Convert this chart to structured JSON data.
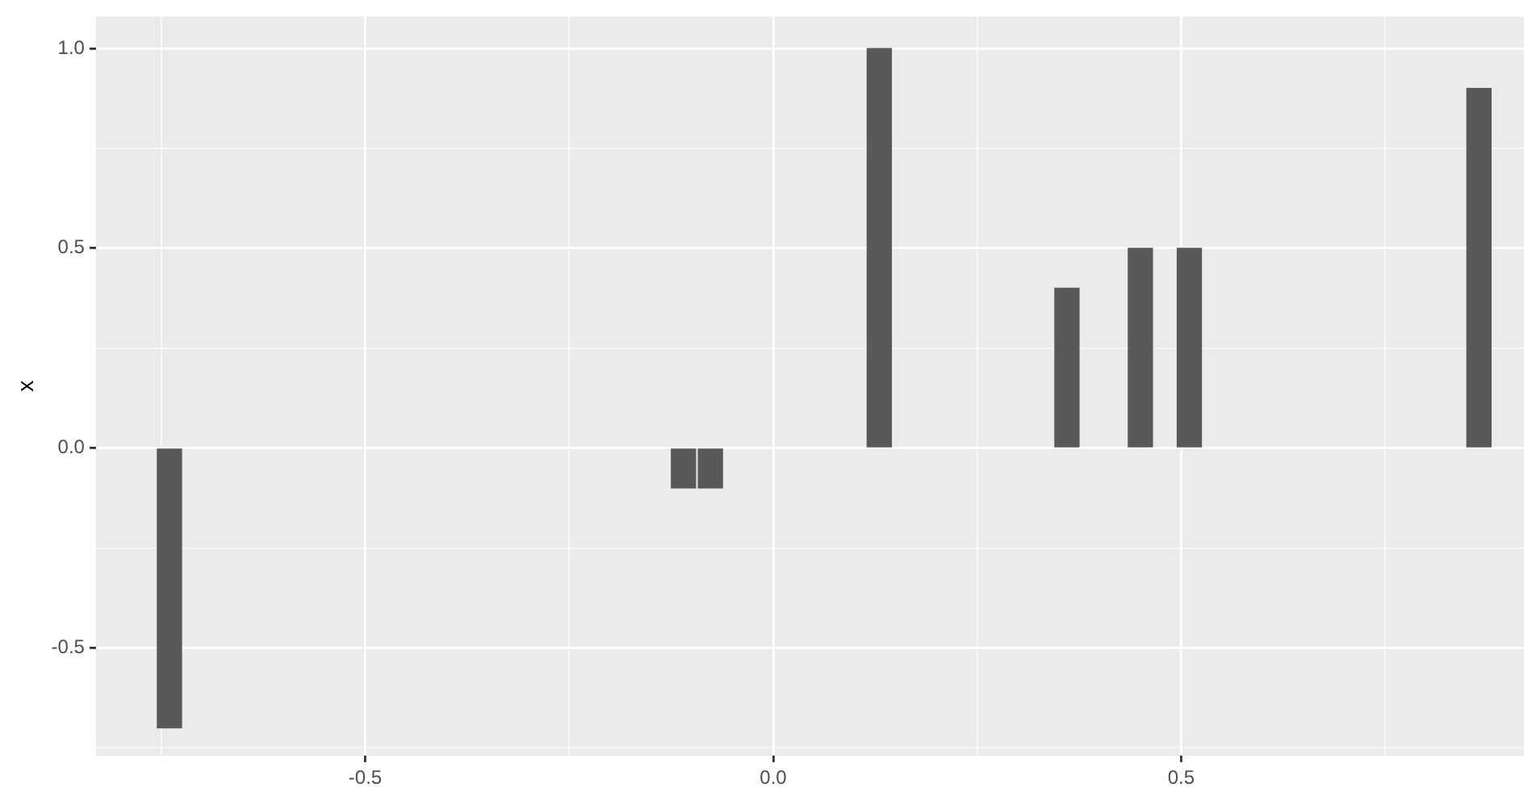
{
  "chart_data": {
    "type": "bar",
    "ylabel": "x",
    "x": [
      -0.74,
      -0.11,
      -0.077,
      0.13,
      0.36,
      0.45,
      0.51,
      0.865
    ],
    "values": [
      -0.7,
      -0.1,
      -0.1,
      1.0,
      0.4,
      0.5,
      0.5,
      0.9
    ],
    "color": "#595959",
    "xlim": [
      -0.83,
      0.92
    ],
    "xticks": [
      {
        "value": -0.75,
        "label": null
      },
      -0.5,
      {
        "value": -0.25,
        "label": null
      },
      {
        "value": 0,
        "label": "0.0"
      },
      {
        "value": 0.25,
        "label": null
      },
      0.5,
      {
        "value": 0.75,
        "label": null
      }
    ],
    "ylim": [
      -0.77,
      1.08
    ],
    "yticks": [
      {
        "value": -0.75,
        "label": null
      },
      -0.5,
      {
        "value": -0.25,
        "label": null
      },
      {
        "value": 0,
        "label": "0.0"
      },
      {
        "value": 0.25,
        "label": null
      },
      0.5,
      {
        "value": 0.75,
        "label": null
      },
      {
        "value": 1,
        "label": "1.0"
      }
    ],
    "grid": true,
    "legend": false
  }
}
